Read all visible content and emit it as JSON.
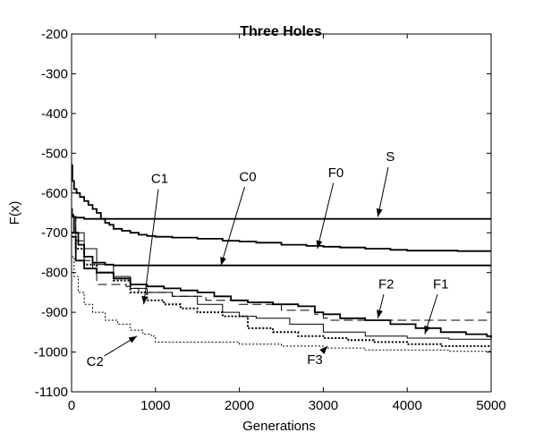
{
  "chart_data": {
    "type": "line",
    "title": "Three Holes",
    "xlabel": "Generations",
    "ylabel": "F(x)",
    "xlim": [
      0,
      5000
    ],
    "ylim": [
      -1100,
      -200
    ],
    "xticks": [
      0,
      1000,
      2000,
      3000,
      4000,
      5000
    ],
    "yticks": [
      -200,
      -300,
      -400,
      -500,
      -600,
      -700,
      -800,
      -900,
      -1000,
      -1100
    ],
    "grid": false,
    "legend": "none",
    "series": [
      {
        "name": "S",
        "style": "solid-thick",
        "x": [
          0,
          5,
          20,
          50,
          150,
          5000
        ],
        "y": [
          -640,
          -655,
          -660,
          -662,
          -665,
          -665
        ]
      },
      {
        "name": "F0",
        "style": "solid-thick",
        "x": [
          0,
          10,
          30,
          60,
          100,
          150,
          200,
          250,
          300,
          350,
          400,
          450,
          500,
          600,
          700,
          800,
          900,
          1000,
          1200,
          1500,
          1800,
          2000,
          2200,
          2500,
          2800,
          3000,
          3200,
          3500,
          3800,
          4000,
          4300,
          4600,
          5000
        ],
        "y": [
          -530,
          -570,
          -590,
          -600,
          -610,
          -620,
          -630,
          -640,
          -650,
          -665,
          -675,
          -680,
          -690,
          -695,
          -700,
          -705,
          -708,
          -710,
          -712,
          -715,
          -720,
          -722,
          -725,
          -730,
          -733,
          -735,
          -737,
          -740,
          -743,
          -745,
          -745,
          -746,
          -746
        ]
      },
      {
        "name": "C0",
        "style": "solid-thick",
        "x": [
          0,
          30,
          80,
          150,
          250,
          400,
          500,
          5000
        ],
        "y": [
          -660,
          -700,
          -730,
          -760,
          -775,
          -780,
          -782,
          -782
        ]
      },
      {
        "name": "C1",
        "style": "solid-thin",
        "x": [
          0,
          50,
          150,
          300,
          500,
          700,
          900,
          1200,
          1500,
          1800,
          2000,
          2200,
          2600,
          3000,
          3500,
          4000,
          4500,
          5000
        ],
        "y": [
          -660,
          -700,
          -740,
          -780,
          -810,
          -840,
          -850,
          -860,
          -880,
          -900,
          -910,
          -915,
          -930,
          -950,
          -960,
          -965,
          -968,
          -970
        ]
      },
      {
        "name": "F2",
        "style": "dashed",
        "x": [
          0,
          50,
          150,
          250,
          300,
          600,
          650,
          700,
          800,
          1200,
          1600,
          2000,
          2500,
          2900,
          3000,
          3050,
          5000
        ],
        "y": [
          -660,
          -720,
          -770,
          -790,
          -830,
          -830,
          -835,
          -840,
          -850,
          -860,
          -870,
          -880,
          -895,
          -905,
          -915,
          -920,
          -920
        ]
      },
      {
        "name": "F1",
        "style": "solid-thick",
        "x": [
          0,
          50,
          150,
          300,
          500,
          700,
          900,
          1100,
          1300,
          1500,
          1700,
          1900,
          2100,
          2400,
          2700,
          2900,
          3000,
          3200,
          3500,
          3800,
          4100,
          4400,
          4700,
          4950,
          5000
        ],
        "y": [
          -710,
          -770,
          -790,
          -800,
          -815,
          -830,
          -835,
          -840,
          -845,
          -850,
          -860,
          -870,
          -875,
          -880,
          -885,
          -900,
          -905,
          -915,
          -920,
          -930,
          -940,
          -950,
          -955,
          -960,
          -965
        ]
      },
      {
        "name": "F3",
        "style": "dotted",
        "x": [
          0,
          50,
          150,
          300,
          500,
          700,
          900,
          1100,
          1300,
          1500,
          1800,
          2100,
          2400,
          2700,
          3000,
          3300,
          3600,
          4000,
          4400,
          4800,
          5000
        ],
        "y": [
          -700,
          -740,
          -780,
          -800,
          -820,
          -850,
          -870,
          -880,
          -890,
          -900,
          -910,
          -940,
          -950,
          -960,
          -965,
          -970,
          -975,
          -980,
          -985,
          -985,
          -985
        ]
      },
      {
        "name": "C2",
        "style": "dotted-fine",
        "x": [
          0,
          30,
          80,
          150,
          250,
          400,
          550,
          700,
          850,
          950,
          1000,
          1500,
          1800,
          2000,
          2500,
          3000,
          3500,
          4000,
          4500,
          5000
        ],
        "y": [
          -760,
          -810,
          -850,
          -880,
          -900,
          -920,
          -930,
          -945,
          -955,
          -960,
          -975,
          -975,
          -975,
          -980,
          -985,
          -990,
          -995,
          -995,
          -998,
          -998
        ]
      }
    ],
    "annotations": [
      {
        "text": "S",
        "tx": 3800,
        "ty": -520,
        "ax": 3650,
        "ay": -660
      },
      {
        "text": "F0",
        "tx": 3150,
        "ty": -560,
        "ax": 2930,
        "ay": -740
      },
      {
        "text": "C0",
        "tx": 2100,
        "ty": -570,
        "ax": 1780,
        "ay": -782
      },
      {
        "text": "C1",
        "tx": 1050,
        "ty": -575,
        "ax": 860,
        "ay": -880
      },
      {
        "text": "F2",
        "tx": 3750,
        "ty": -840,
        "ax": 3650,
        "ay": -915
      },
      {
        "text": "F1",
        "tx": 4400,
        "ty": -840,
        "ax": 4210,
        "ay": -955
      },
      {
        "text": "F3",
        "tx": 2900,
        "ty": -1030,
        "ax": 3050,
        "ay": -985
      },
      {
        "text": "C2",
        "tx": 280,
        "ty": -1035,
        "ax": 780,
        "ay": -960
      }
    ]
  }
}
